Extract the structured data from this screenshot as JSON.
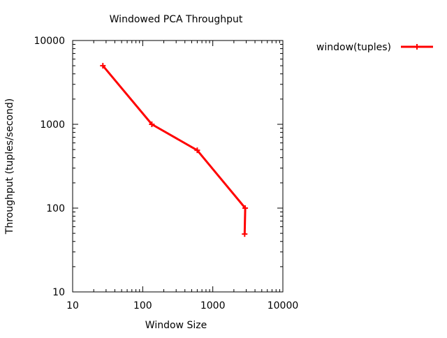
{
  "chart_data": {
    "type": "line",
    "title": "Windowed PCA Throughput",
    "xlabel": "Window Size",
    "ylabel": "Throughput (tuples/second)",
    "x_scale": "log",
    "y_scale": "log",
    "xlim": [
      10,
      10000
    ],
    "ylim": [
      10,
      10000
    ],
    "x_ticks": [
      10,
      100,
      1000,
      10000
    ],
    "x_tick_labels": [
      "10",
      "100",
      "1000",
      "10000"
    ],
    "y_ticks": [
      10,
      100,
      1000,
      10000
    ],
    "y_tick_labels": [
      "10",
      "100",
      "1000",
      "10000"
    ],
    "grid": false,
    "legend_position": "top-right-outside",
    "series": [
      {
        "name": "window(tuples)",
        "color": "#ff0000",
        "marker": "plus",
        "points": [
          {
            "x": 27,
            "y": 5000
          },
          {
            "x": 135,
            "y": 1000
          },
          {
            "x": 600,
            "y": 490
          },
          {
            "x": 2900,
            "y": 100
          },
          {
            "x": 2850,
            "y": 49
          }
        ]
      }
    ]
  }
}
